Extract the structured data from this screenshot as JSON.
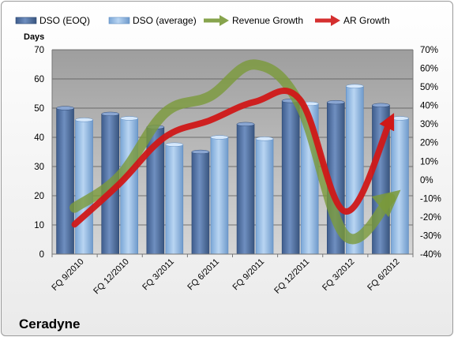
{
  "company": "Ceradyne",
  "chart_data": {
    "type": "bar",
    "categories": [
      "FQ 9/2010",
      "FQ 12/2010",
      "FQ 3/2011",
      "FQ 6/2011",
      "FQ 9/2011",
      "FQ 12/2011",
      "FQ 3/2012",
      "FQ 6/2012"
    ],
    "ylabel": "Days",
    "ylim": [
      0,
      70
    ],
    "y_ticks": [
      0,
      10,
      20,
      30,
      40,
      50,
      60,
      70
    ],
    "y2lim": [
      -40,
      70
    ],
    "y2_ticks": [
      "-40%",
      "-30%",
      "-20%",
      "-10%",
      "0%",
      "10%",
      "20%",
      "30%",
      "40%",
      "50%",
      "60%",
      "70%"
    ],
    "grid": true,
    "legend_position": "top",
    "series": [
      {
        "name": "DSO (EOQ)",
        "type": "bar",
        "axis": "left",
        "color": "#4a6a9c",
        "values": [
          50,
          48,
          43.5,
          35,
          44.5,
          52.5,
          52,
          51
        ]
      },
      {
        "name": "DSO (average)",
        "type": "bar",
        "axis": "left",
        "color": "#8ab4e0",
        "values": [
          46,
          46.5,
          37.5,
          40,
          39.5,
          51.5,
          57.5,
          46.5
        ]
      },
      {
        "name": "Revenue Growth",
        "type": "line",
        "axis": "right",
        "unit": "%",
        "color": "#7a9a3a",
        "values": [
          -15,
          2,
          36,
          45,
          62,
          40,
          -30,
          -10
        ]
      },
      {
        "name": "AR Growth",
        "type": "line",
        "axis": "right",
        "unit": "%",
        "color": "#d01818",
        "values": [
          -24,
          -2,
          23,
          32,
          42,
          43,
          -17,
          32
        ]
      }
    ]
  }
}
